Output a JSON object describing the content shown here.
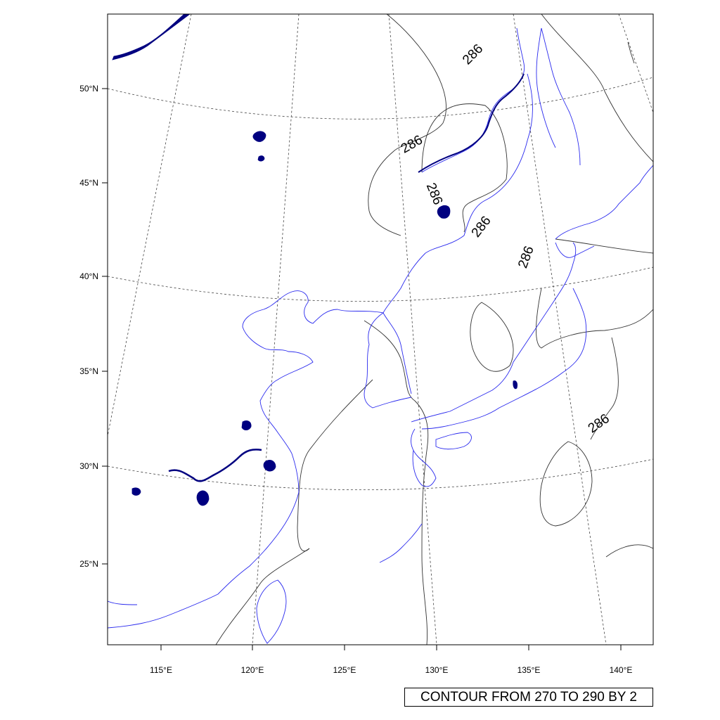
{
  "map": {
    "lat_labels": [
      "50°N",
      "45°N",
      "40°N",
      "35°N",
      "30°N",
      "25°N"
    ],
    "lon_labels": [
      "115°E",
      "120°E",
      "125°E",
      "130°E",
      "135°E",
      "140°E"
    ],
    "contour_value_label": "286",
    "info_label": "CONTOUR FROM 270 TO 290 BY 2",
    "colors": {
      "coastline": "#2a2aee",
      "lakes": "#000080",
      "contour": "#333333",
      "grid": "#444444",
      "frame": "#000000"
    }
  }
}
